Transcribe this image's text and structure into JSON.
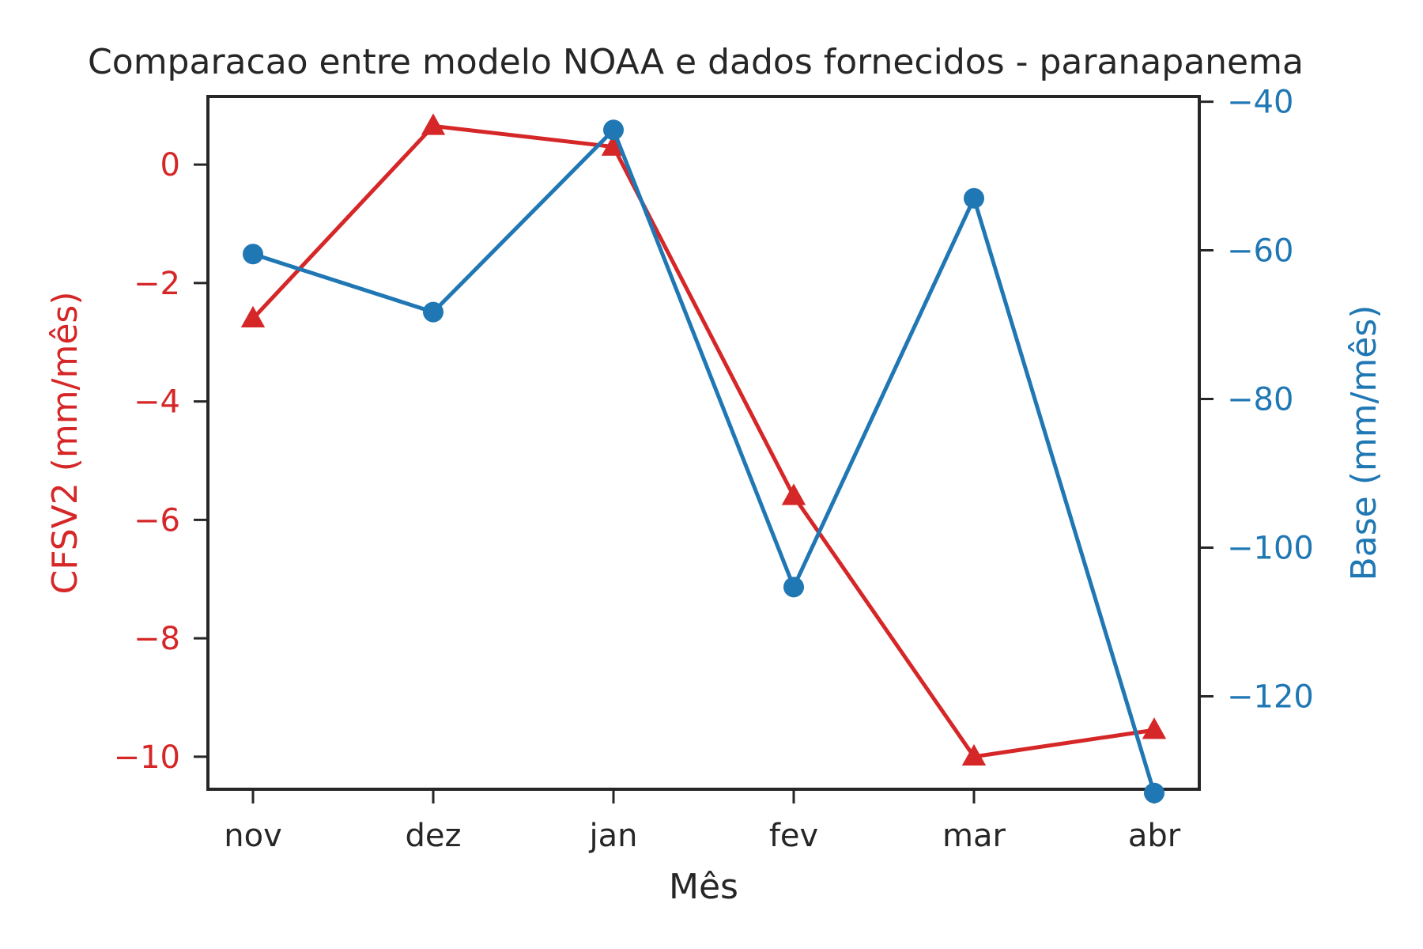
{
  "chart_data": {
    "type": "line",
    "title": "Comparacao entre modelo NOAA e dados fornecidos - paranapanema",
    "xlabel": "Mês",
    "categories": [
      "nov",
      "dez",
      "jan",
      "fev",
      "mar",
      "abr"
    ],
    "y_left": {
      "label": "CFSV2 (mm/mês)",
      "color": "#d62728",
      "ylim": [
        -10.55,
        1.15
      ],
      "ticks": [
        0,
        -2,
        -4,
        -6,
        -8,
        -10
      ],
      "tick_labels": [
        "0",
        "−2",
        "−4",
        "−6",
        "−8",
        "−10"
      ]
    },
    "y_right": {
      "label": "Base (mm/mês)",
      "color": "#1f77b4",
      "ylim": [
        -132.5,
        -39.3
      ],
      "ticks": [
        -40,
        -60,
        -80,
        -100,
        -120
      ],
      "tick_labels": [
        "−40",
        "−60",
        "−80",
        "−100",
        "−120"
      ]
    },
    "series": [
      {
        "axis": "left",
        "marker": "triangle",
        "color": "#d62728",
        "values": [
          -2.6,
          0.65,
          0.3,
          -5.6,
          -10.0,
          -9.55
        ]
      },
      {
        "axis": "right",
        "marker": "circle",
        "color": "#1f77b4",
        "values": [
          -60.5,
          -68.3,
          -43.8,
          -105.3,
          -53.0,
          -133.0
        ]
      }
    ]
  }
}
